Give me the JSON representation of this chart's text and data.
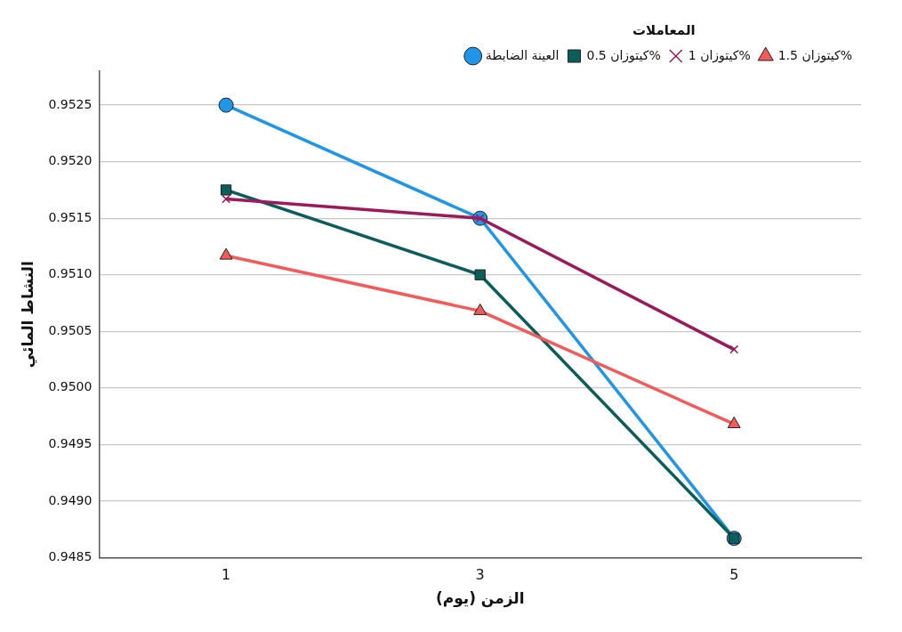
{
  "chart_data": {
    "type": "line",
    "xlabel": "الزمن (يوم)",
    "ylabel": "النشاط المائي",
    "legend_title": "المعاملات",
    "categories": [
      "1",
      "3",
      "5"
    ],
    "series": [
      {
        "name": "العينة الضابطة",
        "color": "#1f96e8",
        "marker": "circle",
        "values": [
          0.9525,
          0.9515,
          0.94867
        ]
      },
      {
        "name": "كيتوزان 0.5%",
        "color": "#0b5e5a",
        "marker": "square",
        "values": [
          0.95175,
          0.951,
          0.94867
        ]
      },
      {
        "name": "كيتوزان 1%",
        "color": "#9c1a5c",
        "marker": "cross",
        "values": [
          0.95167,
          0.9515,
          0.95034
        ]
      },
      {
        "name": "كيتوزان 1.5%",
        "color": "#f55a5a",
        "marker": "triangle",
        "values": [
          0.95117,
          0.95068,
          0.94968
        ]
      }
    ],
    "ylim": [
      0.9485,
      0.9528
    ],
    "yticks": [
      0.9485,
      {
        "value": 0.949,
        "label": "0.9490"
      },
      0.9495,
      {
        "value": 0.95,
        "label": "0.9500"
      },
      0.9505,
      {
        "value": 0.951,
        "label": "0.9510"
      },
      0.9515,
      {
        "value": 0.952,
        "label": "0.9520"
      },
      0.9525
    ],
    "grid": "y",
    "legend": "top right",
    "line_style": "solid"
  }
}
